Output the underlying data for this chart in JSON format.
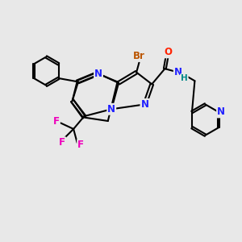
{
  "bg_color": "#e8e8e8",
  "fig_size": [
    3.0,
    3.0
  ],
  "dpi": 100,
  "atom_colors": {
    "N": "#2020ff",
    "O": "#ff2200",
    "F": "#ee00bb",
    "Br": "#bb5500",
    "H": "#008888",
    "C": "#000000"
  },
  "lw": 1.5
}
